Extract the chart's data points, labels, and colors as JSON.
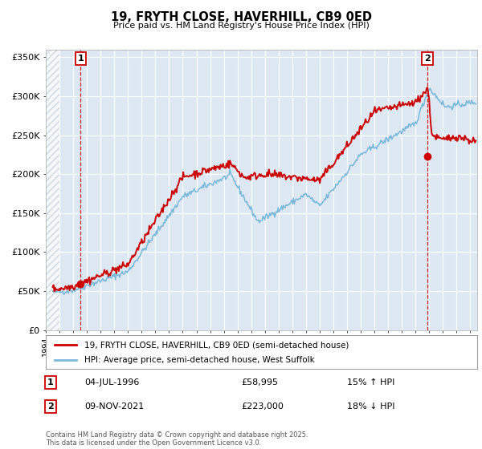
{
  "title": "19, FRYTH CLOSE, HAVERHILL, CB9 0ED",
  "subtitle": "Price paid vs. HM Land Registry's House Price Index (HPI)",
  "ylim": [
    0,
    360000
  ],
  "xlim_start": 1994.0,
  "xlim_end": 2025.5,
  "hpi_color": "#7ab8d9",
  "price_color": "#cc0000",
  "fig_bg": "#ffffff",
  "plot_bg": "#dde8f3",
  "grid_color": "#ffffff",
  "hatch_color": "#c0c8d5",
  "ann1_x": 1996.54,
  "ann1_y": 58995,
  "ann2_x": 2021.86,
  "ann2_y": 223000,
  "legend_line1": "19, FRYTH CLOSE, HAVERHILL, CB9 0ED (semi-detached house)",
  "legend_line2": "HPI: Average price, semi-detached house, West Suffolk",
  "ann1_date": "04-JUL-1996",
  "ann1_price": "£58,995",
  "ann1_hpi": "15% ↑ HPI",
  "ann2_date": "09-NOV-2021",
  "ann2_price": "£223,000",
  "ann2_hpi": "18% ↓ HPI",
  "footer": "Contains HM Land Registry data © Crown copyright and database right 2025.\nThis data is licensed under the Open Government Licence v3.0.",
  "yticks": [
    0,
    50000,
    100000,
    150000,
    200000,
    250000,
    300000,
    350000
  ],
  "ytick_labels": [
    "£0",
    "£50K",
    "£100K",
    "£150K",
    "£200K",
    "£250K",
    "£300K",
    "£350K"
  ],
  "xtick_years": [
    1994,
    1995,
    1996,
    1997,
    1998,
    1999,
    2000,
    2001,
    2002,
    2003,
    2004,
    2005,
    2006,
    2007,
    2008,
    2009,
    2010,
    2011,
    2012,
    2013,
    2014,
    2015,
    2016,
    2017,
    2018,
    2019,
    2020,
    2021,
    2022,
    2023,
    2024,
    2025
  ]
}
